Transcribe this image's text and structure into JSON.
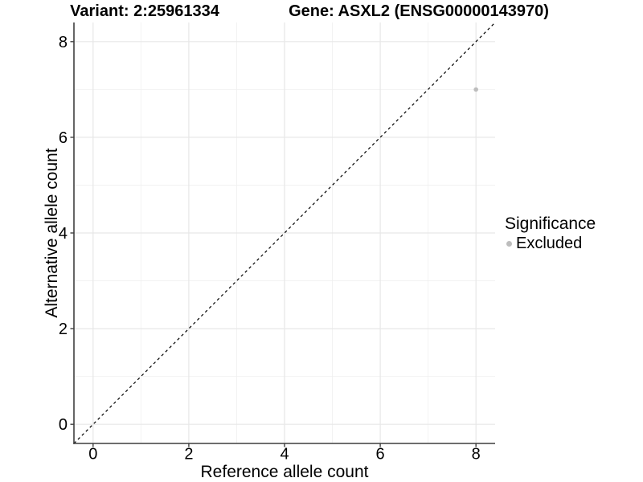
{
  "chart_data": {
    "type": "scatter",
    "title_left": "Variant: 2:25961334",
    "title_right": "Gene: ASXL2 (ENSG00000143970)",
    "xlabel": "Reference allele count",
    "ylabel": "Alternative allele count",
    "xlim": [
      -0.4,
      8.4
    ],
    "ylim": [
      -0.4,
      8.4
    ],
    "xticks": [
      0,
      2,
      4,
      6,
      8
    ],
    "yticks": [
      0,
      2,
      4,
      6,
      8
    ],
    "xminor": [
      1,
      3,
      5,
      7
    ],
    "yminor": [
      1,
      3,
      5,
      7
    ],
    "grid": true,
    "points": [
      {
        "x": 8,
        "y": 7,
        "series": "Excluded"
      }
    ],
    "reference_line": {
      "type": "identity",
      "style": "dashed",
      "from": [
        -0.4,
        -0.4
      ],
      "to": [
        8.4,
        8.4
      ]
    },
    "legend": {
      "title": "Significance",
      "position": "right",
      "items": [
        {
          "label": "Excluded",
          "color": "#bdbdbd"
        }
      ]
    },
    "colors": {
      "background": "#ffffff",
      "grid_major": "#e7e7e7",
      "grid_minor": "#f0f0f0",
      "axis_line": "#3f3f3f",
      "tick_mark": "#3f3f3f",
      "text": "#000000",
      "reference_line": "#000000",
      "point": "#bdbdbd"
    }
  }
}
